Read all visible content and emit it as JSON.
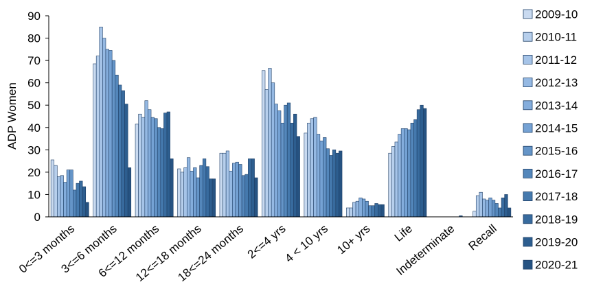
{
  "chart_data": {
    "type": "bar",
    "title": "",
    "xlabel": "",
    "ylabel": "ADP Women",
    "ylim": [
      0,
      90
    ],
    "yticks": [
      0,
      10,
      20,
      30,
      40,
      50,
      60,
      70,
      80,
      90
    ],
    "grid": false,
    "legend_position": "right",
    "categories": [
      "0<=3 months",
      "3<=6 months",
      "6<=12 months",
      "12<=18 months",
      "18<=24 months",
      "2<=4 yrs",
      "4 < 10 yrs",
      "10+ yrs",
      "Life",
      "Indeterminate",
      "Recall"
    ],
    "series": [
      {
        "name": "2009-10",
        "color": "#c9daf0",
        "values": [
          25.5,
          68.5,
          41.5,
          21.5,
          28.5,
          65.5,
          37.5,
          4.0,
          28.5,
          0,
          2.5
        ]
      },
      {
        "name": "2010-11",
        "color": "#b7cfec",
        "values": [
          23.0,
          72.0,
          46.0,
          20.0,
          28.5,
          57.0,
          42.0,
          4.0,
          31.5,
          0,
          9.5
        ]
      },
      {
        "name": "2011-12",
        "color": "#a6c4e8",
        "values": [
          18.0,
          85.0,
          44.5,
          22.0,
          29.5,
          66.5,
          44.0,
          6.5,
          33.5,
          0,
          11.0
        ]
      },
      {
        "name": "2012-13",
        "color": "#95b9e3",
        "values": [
          18.5,
          80.0,
          52.0,
          26.5,
          20.5,
          60.0,
          44.5,
          7.0,
          37.0,
          0,
          8.0
        ]
      },
      {
        "name": "2013-14",
        "color": "#84addc",
        "values": [
          15.5,
          75.0,
          48.0,
          20.5,
          24.0,
          50.5,
          37.0,
          8.5,
          39.5,
          0,
          7.5
        ]
      },
      {
        "name": "2014-15",
        "color": "#75a2d4",
        "values": [
          21.0,
          74.5,
          44.5,
          22.0,
          24.5,
          47.5,
          34.0,
          8.0,
          39.5,
          0,
          8.5
        ]
      },
      {
        "name": "2015-16",
        "color": "#6595c8",
        "values": [
          21.0,
          70.0,
          44.0,
          17.5,
          23.5,
          42.0,
          35.5,
          7.0,
          39.0,
          0,
          7.5
        ]
      },
      {
        "name": "2016-17",
        "color": "#5487bb",
        "values": [
          12.0,
          63.5,
          40.0,
          23.0,
          18.5,
          50.0,
          30.5,
          5.0,
          42.0,
          0,
          6.0
        ]
      },
      {
        "name": "2017-18",
        "color": "#4579ad",
        "values": [
          15.0,
          59.0,
          39.5,
          26.0,
          19.0,
          51.0,
          27.5,
          5.0,
          43.5,
          0,
          4.0
        ]
      },
      {
        "name": "2018-19",
        "color": "#386b9e",
        "values": [
          16.0,
          56.5,
          46.5,
          22.5,
          26.0,
          42.0,
          30.0,
          6.0,
          48.0,
          0.5,
          8.5
        ]
      },
      {
        "name": "2019-20",
        "color": "#2d5e8f",
        "values": [
          13.5,
          50.5,
          47.0,
          17.0,
          26.0,
          46.0,
          28.5,
          5.5,
          50.0,
          0,
          10.0
        ]
      },
      {
        "name": "2020-21",
        "color": "#265382",
        "values": [
          6.5,
          22.0,
          26.0,
          17.0,
          17.5,
          36.0,
          29.5,
          5.5,
          48.5,
          0,
          4.0
        ]
      }
    ]
  }
}
